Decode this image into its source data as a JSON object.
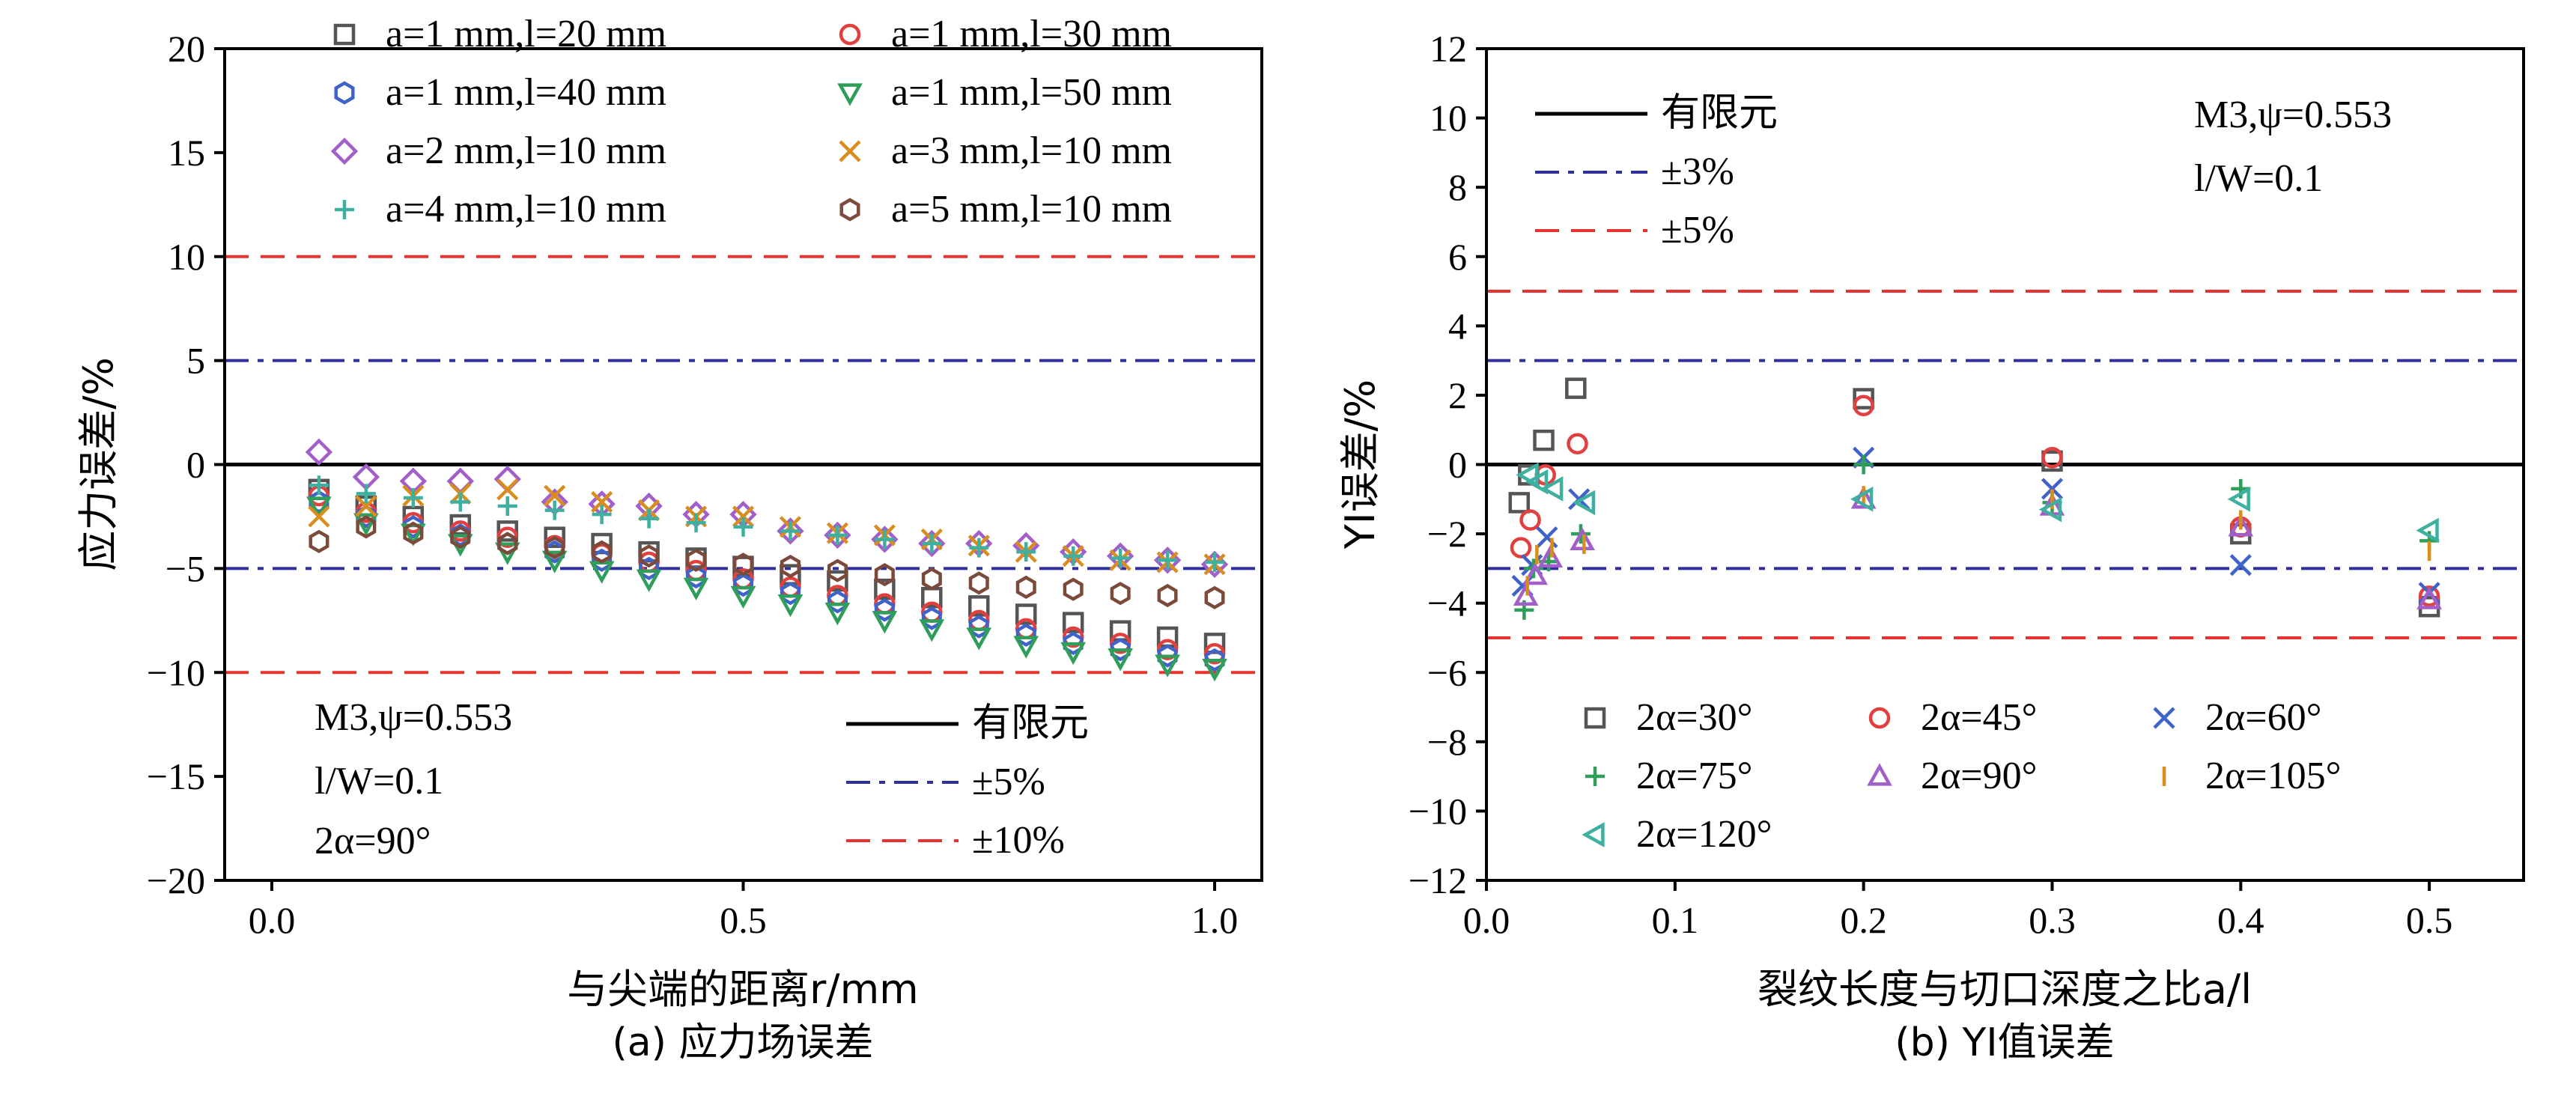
{
  "chart_data": [
    {
      "type": "scatter",
      "panel": "a",
      "caption": "(a) 应力场误差",
      "xlabel": "与尖端的距离r/mm",
      "ylabel": "应力误差/%",
      "xlim": [
        -0.05,
        1.05
      ],
      "ylim": [
        -20,
        20
      ],
      "xticks": [
        "0.0",
        "0.5",
        "1.0"
      ],
      "xtick_values": [
        0,
        0.5,
        1.0
      ],
      "yticks": [
        "20",
        "15",
        "10",
        "5",
        "0",
        "−5",
        "−10",
        "−15",
        "−20"
      ],
      "ytick_values": [
        20,
        15,
        10,
        5,
        0,
        -5,
        -10,
        -15,
        -20
      ],
      "legend_position": "top",
      "annotations": [
        "M3,ψ=0.553",
        "l/W=0.1",
        "2α=90°"
      ],
      "lines": [
        {
          "name": "有限元",
          "y": 0,
          "style": "solid",
          "color": "#000000"
        },
        {
          "name": "±5%",
          "y": [
            5,
            -5
          ],
          "style": "dashdot",
          "color": "#2e2e9c"
        },
        {
          "name": "±10%",
          "y": [
            10,
            -10
          ],
          "style": "dashed",
          "color": "#e8322f"
        }
      ],
      "x": [
        0.05,
        0.1,
        0.15,
        0.2,
        0.25,
        0.3,
        0.35,
        0.4,
        0.45,
        0.5,
        0.55,
        0.6,
        0.65,
        0.7,
        0.75,
        0.8,
        0.85,
        0.9,
        0.95,
        1.0
      ],
      "series": [
        {
          "name": "a=1 mm,l=20 mm",
          "marker": "square",
          "color": "#555555",
          "values": [
            -1.2,
            -2.0,
            -2.5,
            -2.9,
            -3.2,
            -3.5,
            -3.8,
            -4.2,
            -4.5,
            -4.9,
            -5.3,
            -5.6,
            -6.0,
            -6.4,
            -6.8,
            -7.2,
            -7.6,
            -8.0,
            -8.3,
            -8.6
          ]
        },
        {
          "name": "a=1 mm,l=30 mm",
          "marker": "circle",
          "color": "#e23f3f",
          "values": [
            -1.5,
            -2.3,
            -2.8,
            -3.2,
            -3.5,
            -3.9,
            -4.3,
            -4.7,
            -5.1,
            -5.5,
            -5.9,
            -6.3,
            -6.7,
            -7.1,
            -7.5,
            -7.9,
            -8.3,
            -8.6,
            -8.9,
            -9.1
          ]
        },
        {
          "name": "a=1 mm,l=40 mm",
          "marker": "hexagon",
          "color": "#3f63c9",
          "values": [
            -1.8,
            -2.5,
            -3.0,
            -3.4,
            -3.8,
            -4.2,
            -4.6,
            -5.0,
            -5.4,
            -5.8,
            -6.2,
            -6.6,
            -7.0,
            -7.4,
            -7.8,
            -8.2,
            -8.6,
            -8.9,
            -9.2,
            -9.4
          ]
        },
        {
          "name": "a=1 mm,l=50 mm",
          "marker": "triangle-down",
          "color": "#2e9e5a",
          "values": [
            -2.0,
            -2.8,
            -3.3,
            -3.8,
            -4.2,
            -4.6,
            -5.1,
            -5.5,
            -5.9,
            -6.3,
            -6.7,
            -7.1,
            -7.5,
            -7.9,
            -8.3,
            -8.7,
            -9.0,
            -9.3,
            -9.6,
            -9.8
          ]
        },
        {
          "name": "a=2 mm,l=10 mm",
          "marker": "diamond",
          "color": "#a35fc9",
          "values": [
            0.6,
            -0.6,
            -0.8,
            -0.8,
            -0.7,
            -1.8,
            -1.9,
            -2.0,
            -2.4,
            -2.4,
            -3.2,
            -3.4,
            -3.6,
            -3.8,
            -3.8,
            -3.9,
            -4.2,
            -4.4,
            -4.6,
            -4.8
          ]
        },
        {
          "name": "a=3 mm,l=10 mm",
          "marker": "x",
          "color": "#d98d1c",
          "values": [
            -2.5,
            -2.0,
            -1.5,
            -1.4,
            -1.2,
            -1.5,
            -1.8,
            -2.2,
            -2.5,
            -2.5,
            -3.0,
            -3.3,
            -3.4,
            -3.6,
            -3.9,
            -4.2,
            -4.4,
            -4.6,
            -4.7,
            -4.8
          ]
        },
        {
          "name": "a=4 mm,l=10 mm",
          "marker": "plus",
          "color": "#3fb0a0",
          "values": [
            -1.0,
            -1.4,
            -1.6,
            -1.8,
            -2.0,
            -2.2,
            -2.4,
            -2.6,
            -2.8,
            -3.0,
            -3.2,
            -3.4,
            -3.6,
            -3.8,
            -4.0,
            -4.2,
            -4.4,
            -4.5,
            -4.6,
            -4.7
          ]
        },
        {
          "name": "a=5 mm,l=10 mm",
          "marker": "hexagon",
          "color": "#7b4a3a",
          "values": [
            -3.7,
            -3.0,
            -3.3,
            -3.5,
            -3.8,
            -4.0,
            -4.2,
            -4.4,
            -4.6,
            -4.8,
            -4.9,
            -5.1,
            -5.3,
            -5.5,
            -5.7,
            -5.9,
            -6.0,
            -6.2,
            -6.3,
            -6.4
          ]
        }
      ]
    },
    {
      "type": "scatter",
      "panel": "b",
      "caption": "(b) YI值误差",
      "xlabel": "裂纹长度与切口深度之比a/l",
      "ylabel": "YI误差/%",
      "xlim": [
        0,
        0.55
      ],
      "ylim": [
        -12,
        12
      ],
      "xticks": [
        "0.0",
        "0.1",
        "0.2",
        "0.3",
        "0.4",
        "0.5"
      ],
      "xtick_values": [
        0,
        0.1,
        0.2,
        0.3,
        0.4,
        0.5
      ],
      "yticks": [
        "12",
        "10",
        "8",
        "6",
        "4",
        "2",
        "0",
        "−2",
        "−4",
        "−6",
        "−8",
        "−10",
        "−12"
      ],
      "ytick_values": [
        12,
        10,
        8,
        6,
        4,
        2,
        0,
        -2,
        -4,
        -6,
        -8,
        -10,
        -12
      ],
      "legend_position": "bottom",
      "annotations": [
        "M3,ψ=0.553",
        "l/W=0.1"
      ],
      "lines": [
        {
          "name": "有限元",
          "y": 0,
          "style": "solid",
          "color": "#000000"
        },
        {
          "name": "±3%",
          "y": [
            3,
            -3
          ],
          "style": "dashdot",
          "color": "#2e2e9c"
        },
        {
          "name": "±5%",
          "y": [
            5,
            -5
          ],
          "style": "dashed",
          "color": "#e8322f"
        }
      ],
      "x": [
        0.02,
        0.025,
        0.033,
        0.05,
        0.2,
        0.3,
        0.4,
        0.5
      ],
      "series": [
        {
          "name": "2α=30°",
          "marker": "square",
          "color": "#555555",
          "values": [
            -1.1,
            -0.3,
            0.7,
            2.2,
            1.9,
            0.1,
            -2.0,
            -4.1
          ]
        },
        {
          "name": "2α=45°",
          "marker": "circle",
          "color": "#e23f3f",
          "values": [
            -2.4,
            -1.6,
            -0.3,
            0.6,
            1.7,
            0.2,
            -1.8,
            -3.8
          ]
        },
        {
          "name": "2α=60°",
          "marker": "x",
          "color": "#3f63c9",
          "values": [
            -3.5,
            -2.9,
            -2.1,
            -1.0,
            0.2,
            -0.7,
            -2.9,
            -3.7
          ]
        },
        {
          "name": "2α=75°",
          "marker": "plus",
          "color": "#2e9e5a",
          "values": [
            -4.2,
            -3.0,
            -2.8,
            -2.0,
            0.0,
            -1.1,
            -0.7,
            -2.2
          ]
        },
        {
          "name": "2α=90°",
          "marker": "triangle-up",
          "color": "#a35fc9",
          "values": [
            -3.8,
            -3.2,
            -2.7,
            -2.2,
            -1.0,
            -1.2,
            -1.8,
            -3.9
          ]
        },
        {
          "name": "2α=105°",
          "marker": "vbar",
          "color": "#d98d1c",
          "values": [
            -3.5,
            -2.6,
            -2.4,
            -2.3,
            -0.9,
            -1.0,
            -1.6,
            -2.5
          ]
        },
        {
          "name": "2α=120°",
          "marker": "triangle-left",
          "color": "#3fb0a0",
          "values": [
            -0.3,
            -0.5,
            -0.7,
            -1.1,
            -1.0,
            -1.3,
            -1.0,
            -1.9
          ]
        }
      ]
    }
  ]
}
